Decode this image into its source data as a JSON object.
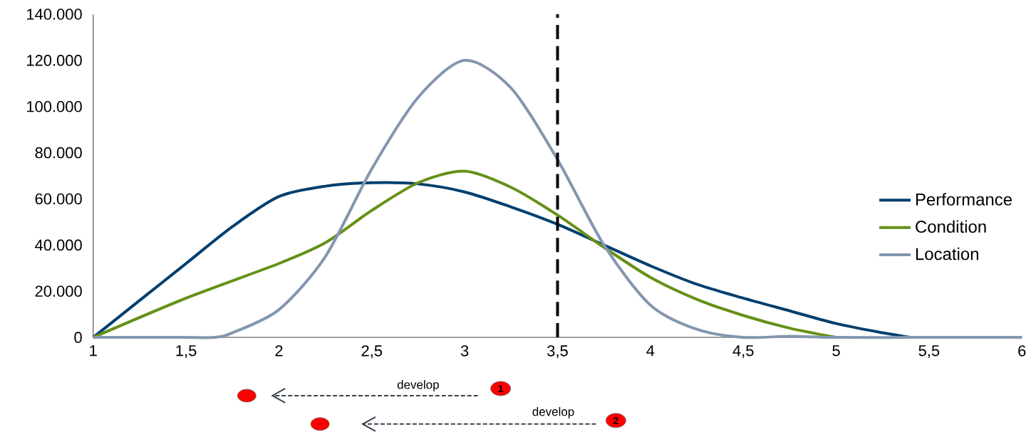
{
  "chart_data": {
    "type": "line",
    "legend": "right",
    "line_style": "solid",
    "marker": "none",
    "grid": false,
    "xlim": [
      1,
      6
    ],
    "ylim": [
      0,
      140000
    ],
    "xticks": [
      1,
      {
        "value": 1.5,
        "label": "1,5"
      },
      2,
      {
        "value": 2.5,
        "label": "2,5"
      },
      3,
      {
        "value": 3.5,
        "label": "3,5"
      },
      4,
      {
        "value": 4.5,
        "label": "4,5"
      },
      5,
      {
        "value": 5.5,
        "label": "5,5"
      },
      6
    ],
    "yticks": [
      0,
      {
        "value": 20000,
        "label": "20.000"
      },
      {
        "value": 40000,
        "label": "40.000"
      },
      {
        "value": 60000,
        "label": "60.000"
      },
      {
        "value": 80000,
        "label": "80.000"
      },
      {
        "value": 100000,
        "label": "100.000"
      },
      {
        "value": 120000,
        "label": "120.000"
      },
      {
        "value": 140000,
        "label": "140.000"
      }
    ],
    "series": [
      {
        "name": "Performance",
        "color": "#003f6e",
        "x": [
          1,
          1.25,
          1.5,
          1.75,
          2,
          2.25,
          2.5,
          2.75,
          3,
          3.25,
          3.5,
          3.75,
          4,
          4.25,
          4.5,
          4.75,
          5,
          5.25,
          5.4
        ],
        "values": [
          0,
          16000,
          32000,
          48000,
          61000,
          65500,
          67000,
          66500,
          63000,
          56500,
          49000,
          40000,
          31000,
          23000,
          17000,
          11500,
          6000,
          2000,
          0
        ]
      },
      {
        "name": "Condition",
        "color": "#669018",
        "x": [
          1,
          1.5,
          2,
          2.25,
          2.5,
          2.75,
          3,
          3.25,
          3.5,
          3.75,
          4,
          4.25,
          4.5,
          4.75,
          5
        ],
        "values": [
          0,
          17000,
          32000,
          41000,
          55000,
          67000,
          72000,
          65000,
          53000,
          39000,
          26000,
          16500,
          9500,
          4000,
          0
        ]
      },
      {
        "name": "Location",
        "color": "#8496b0",
        "x": [
          1,
          1.25,
          1.5,
          1.65,
          1.75,
          2,
          2.25,
          2.5,
          2.75,
          3,
          3.25,
          3.5,
          3.75,
          4,
          4.25,
          4.5,
          4.75,
          5,
          5.5,
          6
        ],
        "values": [
          0,
          0,
          0,
          0,
          2000,
          12000,
          35000,
          73000,
          104000,
          120000,
          108000,
          77000,
          40000,
          14000,
          3500,
          0,
          500,
          0,
          0,
          0
        ]
      }
    ],
    "ref_lines": [
      {
        "axis": "x",
        "value": 3.5,
        "color": "#000000",
        "line_style": "dashed"
      }
    ],
    "annotations": [
      "develop",
      "1",
      "develop",
      "2"
    ]
  }
}
